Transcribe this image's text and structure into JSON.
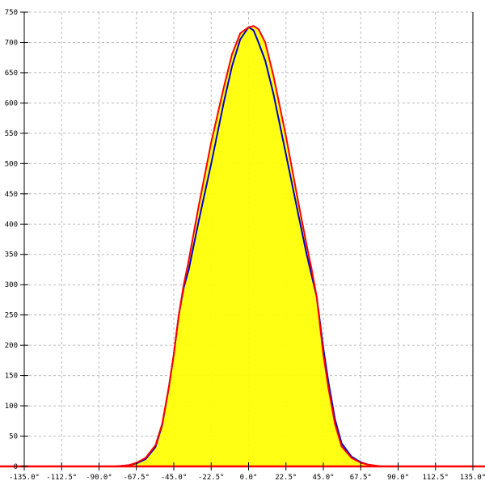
{
  "chart_data": {
    "type": "area",
    "title": "",
    "xlabel": "",
    "ylabel": "",
    "xlim": [
      -135,
      135
    ],
    "ylim": [
      0,
      750
    ],
    "grid": true,
    "x_ticks": [
      -135,
      -112.5,
      -90,
      -67.5,
      -45,
      -22.5,
      0,
      22.5,
      45,
      67.5,
      90,
      112.5,
      135
    ],
    "x_tick_labels": [
      "-135.0°",
      "-112.5°",
      "-90.0°",
      "-67.5°",
      "-45.0°",
      "-22.5°",
      "0.0°",
      "22.5°",
      "45.0°",
      "67.5°",
      "90.0°",
      "112.5°",
      "135.0°"
    ],
    "y_ticks": [
      0,
      50,
      100,
      150,
      200,
      250,
      300,
      350,
      400,
      450,
      500,
      550,
      600,
      650,
      700,
      750
    ],
    "y_tick_labels": [
      "0",
      "50",
      "100",
      "150",
      "200",
      "250",
      "300",
      "350",
      "400",
      "450",
      "500",
      "550",
      "600",
      "650",
      "700",
      "750"
    ],
    "series": [
      {
        "color": "#ff0000",
        "fill": "#ffff00",
        "x": [
          -80,
          -72,
          -67.5,
          -62,
          -56,
          -52,
          -48,
          -45,
          -42,
          -39,
          -36,
          -30,
          -22.5,
          -15,
          -10,
          -5,
          0,
          3,
          6,
          10,
          15,
          22.5,
          30,
          35,
          38,
          41,
          45,
          48,
          52,
          56,
          62,
          67.5,
          72,
          80
        ],
        "y": [
          0,
          2,
          6,
          14,
          35,
          70,
          130,
          185,
          250,
          300,
          340,
          430,
          535,
          625,
          680,
          715,
          725,
          727,
          722,
          700,
          645,
          545,
          435,
          365,
          325,
          280,
          185,
          130,
          70,
          33,
          14,
          6,
          3,
          0
        ]
      },
      {
        "color": "#0000cc",
        "x": [
          -80,
          -72,
          -67.5,
          -62,
          -56,
          -52,
          -48,
          -45,
          -42,
          -39,
          -36,
          -30,
          -22.5,
          -15,
          -10,
          -5,
          0,
          3,
          6,
          10,
          15,
          22.5,
          30,
          35,
          38,
          41,
          45,
          48,
          52,
          56,
          62,
          67.5,
          72,
          78
        ],
        "y": [
          0,
          2,
          5,
          12,
          32,
          68,
          130,
          185,
          250,
          295,
          325,
          405,
          500,
          600,
          660,
          705,
          725,
          720,
          700,
          670,
          615,
          515,
          415,
          350,
          315,
          280,
          195,
          140,
          78,
          38,
          16,
          7,
          3,
          0
        ]
      }
    ]
  }
}
